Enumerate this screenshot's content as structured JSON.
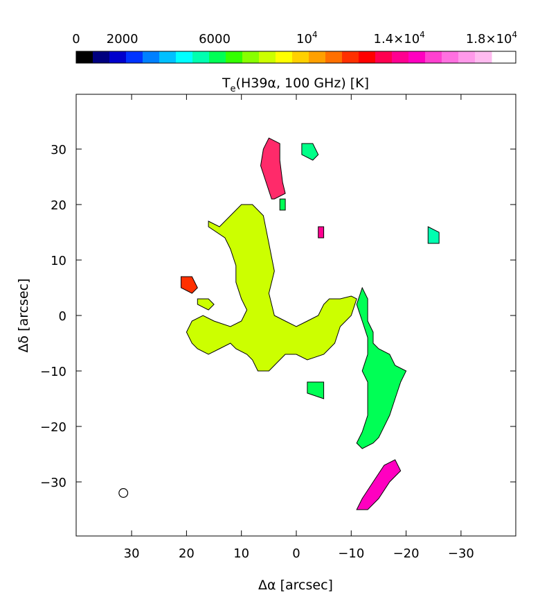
{
  "chart_data": {
    "type": "heatmap",
    "title": "T_e(H39α, 100 GHz) [K]",
    "title_parts": {
      "main": "T",
      "sub": "e",
      "rest": "(H39α, 100 GHz) [K]"
    },
    "xlabel": "Δα [arcsec]",
    "ylabel": "Δδ [arcsec]",
    "xlim": [
      40,
      -40
    ],
    "ylim": [
      -40,
      40
    ],
    "x_ticks": [
      30,
      20,
      10,
      0,
      -10,
      -20,
      -30
    ],
    "x_tick_labels": [
      "30",
      "20",
      "10",
      "0",
      "−10",
      "−20",
      "−30"
    ],
    "y_ticks": [
      30,
      20,
      10,
      0,
      -10,
      -20,
      -30
    ],
    "y_tick_labels": [
      "30",
      "20",
      "10",
      "0",
      "−10",
      "−20",
      "−30"
    ],
    "colorbar": {
      "range": [
        0,
        20000
      ],
      "ticks": [
        0,
        2000,
        6000,
        10000,
        14000,
        18000
      ],
      "tick_labels": [
        {
          "base": "0",
          "exp": ""
        },
        {
          "base": "2000",
          "exp": ""
        },
        {
          "base": "6000",
          "exp": ""
        },
        {
          "base": "10",
          "exp": "4"
        },
        {
          "base": "1.4×10",
          "exp": "4"
        },
        {
          "base": "1.8×10",
          "exp": "4"
        }
      ],
      "colors": [
        "#000000",
        "#00007f",
        "#0000cc",
        "#0033ff",
        "#0080ff",
        "#00c0ff",
        "#00ffff",
        "#00ffb0",
        "#00ff55",
        "#33ff00",
        "#88ff00",
        "#ccff00",
        "#ffff00",
        "#ffd000",
        "#ffa000",
        "#ff7000",
        "#ff3000",
        "#ff0000",
        "#ff0050",
        "#ff0090",
        "#ff00c0",
        "#ff40d0",
        "#ff70e0",
        "#ff99ea",
        "#ffbbf0"
      ]
    },
    "beam": {
      "x": 31.5,
      "y": -32,
      "radius": 0.8
    },
    "regions": [
      {
        "name": "northern-arm",
        "color": "#ff2a6a",
        "points": [
          [
            4.5,
            21
          ],
          [
            5.5,
            24
          ],
          [
            6.5,
            27
          ],
          [
            6,
            30
          ],
          [
            5,
            32
          ],
          [
            3,
            31
          ],
          [
            3,
            28
          ],
          [
            2.5,
            24
          ],
          [
            2,
            22
          ],
          [
            4,
            21
          ]
        ]
      },
      {
        "name": "central-ridge",
        "color": "#ccff00",
        "points": [
          [
            16,
            17
          ],
          [
            14,
            16
          ],
          [
            10,
            20
          ],
          [
            8,
            20
          ],
          [
            6,
            18
          ],
          [
            5,
            13
          ],
          [
            4,
            8
          ],
          [
            5,
            4
          ],
          [
            4,
            0
          ],
          [
            2,
            -1
          ],
          [
            0,
            -2
          ],
          [
            -2,
            -1
          ],
          [
            -4,
            0
          ],
          [
            -5,
            2
          ],
          [
            -6,
            3
          ],
          [
            -8,
            3
          ],
          [
            -10,
            3.5
          ],
          [
            -11,
            3
          ],
          [
            -10,
            0
          ],
          [
            -8,
            -2
          ],
          [
            -7,
            -5
          ],
          [
            -5,
            -7
          ],
          [
            -2,
            -8
          ],
          [
            0,
            -7
          ],
          [
            2,
            -7
          ],
          [
            4,
            -9
          ],
          [
            5,
            -10
          ],
          [
            7,
            -10
          ],
          [
            8,
            -8
          ],
          [
            9,
            -7
          ],
          [
            11,
            -6
          ],
          [
            12,
            -5
          ],
          [
            14,
            -6
          ],
          [
            16,
            -7
          ],
          [
            18,
            -6
          ],
          [
            19,
            -5
          ],
          [
            20,
            -3
          ],
          [
            19,
            -1
          ],
          [
            17,
            0
          ],
          [
            15,
            -1
          ],
          [
            12,
            -2
          ],
          [
            10,
            -1
          ],
          [
            9,
            1
          ],
          [
            10,
            3
          ],
          [
            11,
            6
          ],
          [
            11,
            9
          ],
          [
            12,
            12
          ],
          [
            13,
            14
          ],
          [
            16,
            16
          ]
        ]
      },
      {
        "name": "eastern-arm",
        "color": "#00ff55",
        "points": [
          [
            -12,
            5
          ],
          [
            -13,
            3
          ],
          [
            -13,
            -1
          ],
          [
            -14,
            -3
          ],
          [
            -14,
            -5
          ],
          [
            -15,
            -6
          ],
          [
            -17,
            -7
          ],
          [
            -18,
            -9
          ],
          [
            -20,
            -10
          ],
          [
            -19,
            -12
          ],
          [
            -18,
            -15
          ],
          [
            -17,
            -18
          ],
          [
            -16,
            -20
          ],
          [
            -15,
            -22
          ],
          [
            -14,
            -23
          ],
          [
            -12,
            -24
          ],
          [
            -11,
            -23
          ],
          [
            -12,
            -21
          ],
          [
            -13,
            -18
          ],
          [
            -13,
            -15
          ],
          [
            -13,
            -12
          ],
          [
            -12,
            -10
          ],
          [
            -13,
            -7
          ],
          [
            -13,
            -4
          ],
          [
            -12,
            -1
          ],
          [
            -11,
            2
          ]
        ]
      },
      {
        "name": "southern-tail",
        "color": "#ff00c0",
        "points": [
          [
            -11,
            -35
          ],
          [
            -12,
            -33
          ],
          [
            -14,
            -30
          ],
          [
            -16,
            -27
          ],
          [
            -18,
            -26
          ],
          [
            -19,
            -28
          ],
          [
            -17,
            -30
          ],
          [
            -15,
            -33
          ],
          [
            -13,
            -35
          ]
        ]
      },
      {
        "name": "clump-ne-1",
        "color": "#00ff88",
        "points": [
          [
            -1,
            31
          ],
          [
            -3,
            31
          ],
          [
            -4,
            29
          ],
          [
            -3,
            28
          ],
          [
            -1,
            29
          ]
        ]
      },
      {
        "name": "clump-w-1",
        "color": "#ff3000",
        "points": [
          [
            21,
            7
          ],
          [
            19,
            7
          ],
          [
            18,
            5
          ],
          [
            19,
            4
          ],
          [
            21,
            5
          ]
        ]
      },
      {
        "name": "clump-w-2",
        "color": "#ccff00",
        "points": [
          [
            18,
            3
          ],
          [
            16,
            3
          ],
          [
            15,
            2
          ],
          [
            16,
            1
          ],
          [
            18,
            2
          ]
        ]
      },
      {
        "name": "clump-e-1",
        "color": "#ff0090",
        "points": [
          [
            -4,
            16
          ],
          [
            -5,
            16
          ],
          [
            -5,
            14
          ],
          [
            -4,
            14
          ]
        ]
      },
      {
        "name": "clump-e-2",
        "color": "#00ffb0",
        "points": [
          [
            -24,
            16
          ],
          [
            -26,
            15
          ],
          [
            -26,
            13
          ],
          [
            -24,
            13
          ]
        ]
      },
      {
        "name": "clump-s-1",
        "color": "#00ff55",
        "points": [
          [
            -2,
            -12
          ],
          [
            -5,
            -12
          ],
          [
            -5,
            -15
          ],
          [
            -2,
            -14
          ]
        ]
      },
      {
        "name": "clump-n-1",
        "color": "#00ff55",
        "points": [
          [
            2,
            21
          ],
          [
            3,
            21
          ],
          [
            3,
            19
          ],
          [
            2,
            19
          ]
        ]
      }
    ]
  }
}
